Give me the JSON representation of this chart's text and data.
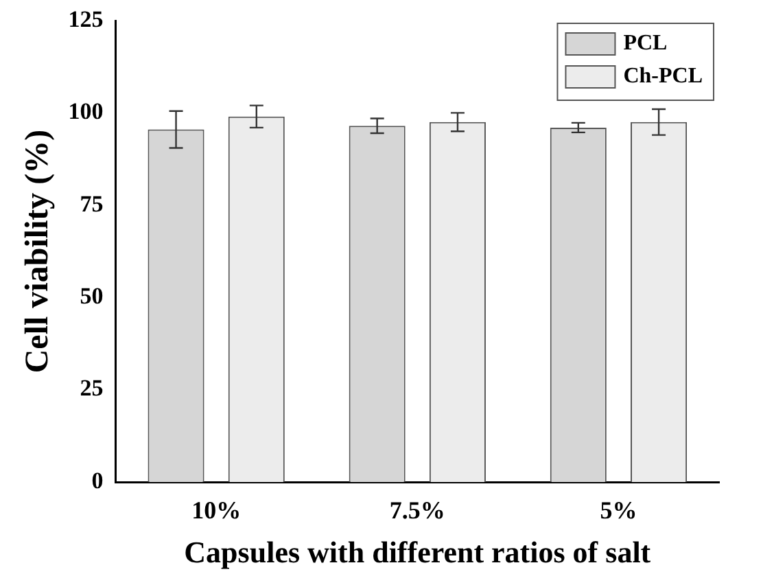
{
  "chart_data": {
    "type": "bar",
    "xlabel": "Capsules with different ratios of salt",
    "ylabel": "Cell viability (%)",
    "categories": [
      "10%",
      "7.5%",
      "5%"
    ],
    "series": [
      {
        "name": "PCL",
        "color": "#d6d6d6",
        "values": [
          95.5,
          96.5,
          96
        ],
        "errors": [
          5,
          2,
          1.3
        ]
      },
      {
        "name": "Ch-PCL",
        "color": "#ececec",
        "values": [
          99,
          97.5,
          97.5
        ],
        "errors": [
          3,
          2.5,
          3.5
        ]
      }
    ],
    "ylim": [
      0,
      125
    ],
    "yticks": [
      0,
      25,
      50,
      75,
      100,
      125
    ],
    "grid": false,
    "legend": "top right"
  }
}
